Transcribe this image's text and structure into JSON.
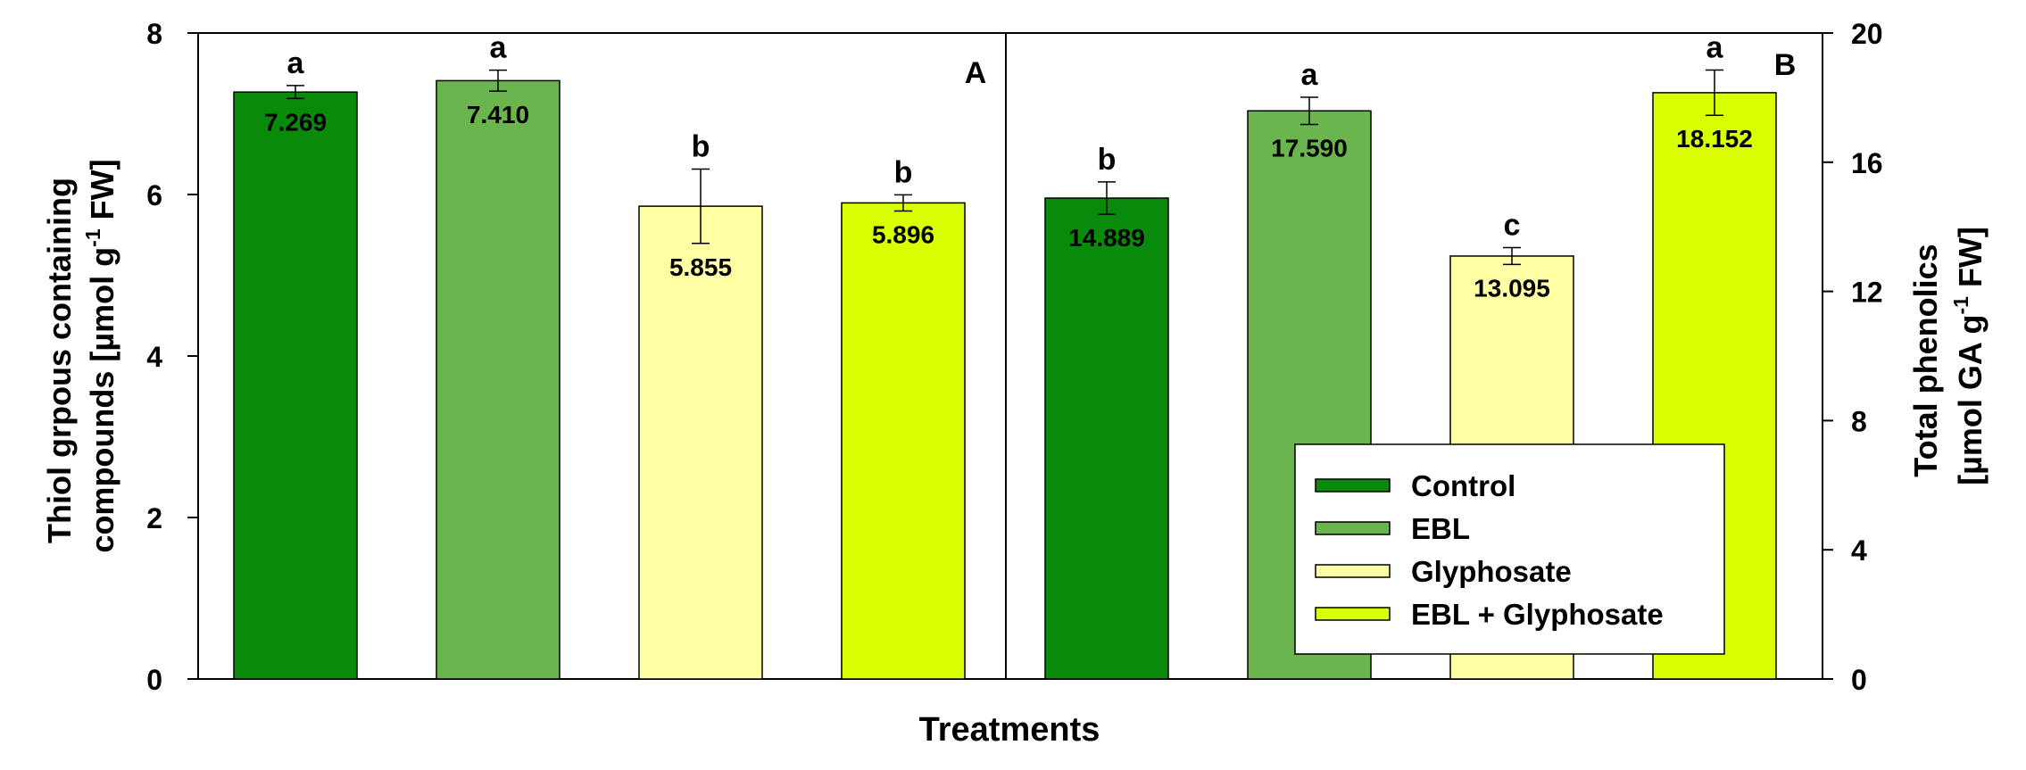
{
  "chart_data": {
    "type": "bar",
    "xlabel": "Treatments",
    "series_names": [
      "Control",
      "EBL",
      "Glyphosate",
      "EBL + Glyphosate"
    ],
    "colors": [
      "#0a8a0a",
      "#6ab54e",
      "#ffffa6",
      "#d9ff00"
    ],
    "legend": {
      "placement": "lower-right of panel B",
      "entries": [
        "Control",
        "EBL",
        "Glyphosate",
        "EBL + Glyphosate"
      ]
    },
    "panels": [
      {
        "label": "A",
        "axis_side": "left",
        "ylabel_line1": "Thiol grpous containing",
        "ylabel_line2_pre": "compounds [µmol g",
        "ylabel_sup": "-1",
        "ylabel_line2_post": " FW]",
        "ylim": [
          0,
          8
        ],
        "yticks": [
          "0",
          "2",
          "4",
          "6",
          "8"
        ],
        "values": [
          7.269,
          7.41,
          5.855,
          5.896
        ],
        "value_labels": [
          "7.269",
          "7.410",
          "5.855",
          "5.896"
        ],
        "errors": [
          0.08,
          0.13,
          0.46,
          0.1
        ],
        "letters": [
          "a",
          "a",
          "b",
          "b"
        ]
      },
      {
        "label": "B",
        "axis_side": "right",
        "ylabel_line1": "Total phenolics",
        "ylabel_line2_pre": "[µmol GA g",
        "ylabel_sup": "-1",
        "ylabel_line2_post": " FW]",
        "ylim": [
          0,
          20
        ],
        "yticks": [
          "0",
          "4",
          "8",
          "12",
          "16",
          "20"
        ],
        "values": [
          14.889,
          17.59,
          13.095,
          18.152
        ],
        "value_labels": [
          "14.889",
          "17.590",
          "13.095",
          "18.152"
        ],
        "errors": [
          0.5,
          0.42,
          0.26,
          0.7
        ],
        "letters": [
          "b",
          "a",
          "c",
          "a"
        ]
      }
    ],
    "grid": false
  }
}
